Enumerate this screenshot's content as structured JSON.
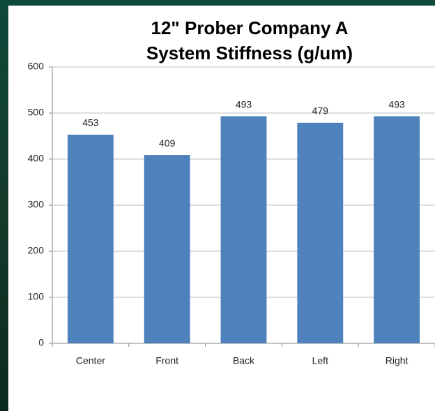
{
  "chart_data": {
    "type": "bar",
    "title": [
      "12\" Prober Company A",
      "System Stiffness (g/um)"
    ],
    "categories": [
      "Center",
      "Front",
      "Back",
      "Left",
      "Right"
    ],
    "values": [
      453,
      409,
      493,
      479,
      493
    ],
    "color": "#4f81bd",
    "ylim": [
      0,
      600
    ],
    "yticks": [
      0,
      100,
      200,
      300,
      400,
      500,
      600
    ],
    "grid": true
  }
}
